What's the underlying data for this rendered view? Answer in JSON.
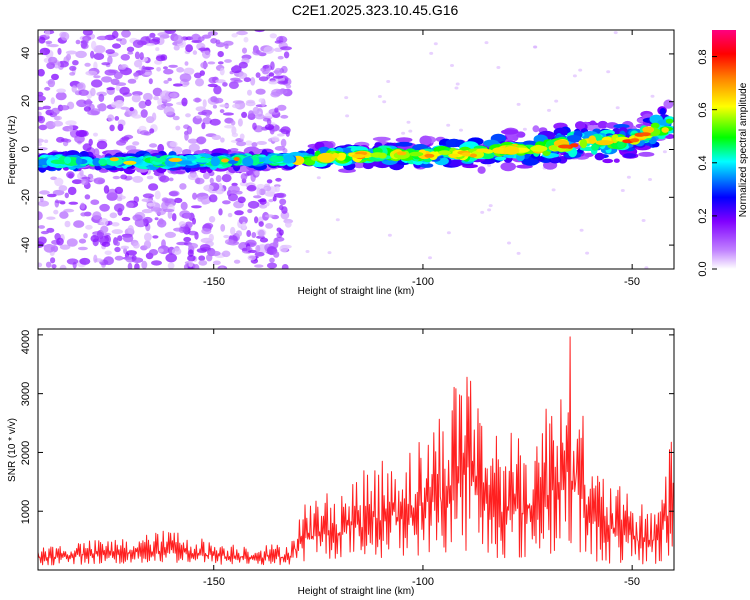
{
  "title": "C2E1.2025.323.10.45.G16",
  "chart_data": [
    {
      "type": "heatmap",
      "xlabel": "Height of straight line (km)",
      "ylabel": "Frequency (Hz)",
      "xlim": [
        -192,
        -40
      ],
      "ylim": [
        -50,
        50
      ],
      "xticks": [
        -150,
        -100,
        -50
      ],
      "xtick_labels": [
        "-150",
        "-100",
        "-50"
      ],
      "yticks": [
        -40,
        -20,
        0,
        20,
        40
      ],
      "ytick_labels": [
        "-40",
        "-20",
        "0",
        "20",
        "40"
      ],
      "ridge": {
        "description": "main ridge of frequency vs height",
        "x": [
          -192,
          -150,
          -130,
          -110,
          -100,
          -90,
          -80,
          -70,
          -60,
          -50,
          -45,
          -41
        ],
        "y": [
          -5,
          -5,
          -4,
          -2,
          -2,
          -2,
          0,
          1,
          3,
          4,
          8,
          10
        ]
      },
      "noise_region_x": [
        -192,
        -132
      ],
      "colorbar": {
        "label": "Normalized spectral amplitude",
        "range": [
          0,
          0.9
        ],
        "ticks": [
          0,
          0.2,
          0.4,
          0.6,
          0.8
        ],
        "tick_labels": [
          "0.0",
          "0.2",
          "0.4",
          "0.6",
          "0.8"
        ],
        "colormap": [
          "#ffffff",
          "#c080ff",
          "#8000ff",
          "#0000ff",
          "#00ffff",
          "#00ff00",
          "#ffff00",
          "#ff8000",
          "#ff0000",
          "#ff0080"
        ]
      }
    },
    {
      "type": "line",
      "xlabel": "Height of straight line (km)",
      "ylabel": "SNR (10 * v/v)",
      "xlim": [
        -192,
        -40
      ],
      "ylim": [
        0,
        4100
      ],
      "xticks": [
        -150,
        -100,
        -50
      ],
      "xtick_labels": [
        "-150",
        "-100",
        "-50"
      ],
      "yticks": [
        1000,
        2000,
        3000,
        4000
      ],
      "ytick_labels": [
        "1000",
        "2000",
        "3000",
        "4000"
      ],
      "series": [
        {
          "name": "SNR",
          "color": "#ff2020",
          "x": [
            -192,
            -180,
            -170,
            -160,
            -150,
            -140,
            -132,
            -128,
            -120,
            -110,
            -100,
            -95,
            -92,
            -89,
            -86,
            -80,
            -75,
            -70,
            -67,
            -65,
            -63,
            -60,
            -55,
            -50,
            -45,
            -41
          ],
          "upper": [
            400,
            500,
            550,
            700,
            480,
            430,
            450,
            1200,
            1400,
            1900,
            2300,
            2850,
            3400,
            4050,
            2700,
            2400,
            2200,
            3000,
            3800,
            4050,
            3500,
            1800,
            1600,
            1200,
            1100,
            2200
          ],
          "lower": [
            80,
            100,
            100,
            120,
            90,
            80,
            80,
            150,
            200,
            200,
            250,
            250,
            300,
            300,
            150,
            200,
            150,
            200,
            300,
            250,
            200,
            150,
            100,
            80,
            80,
            80
          ]
        }
      ]
    }
  ]
}
